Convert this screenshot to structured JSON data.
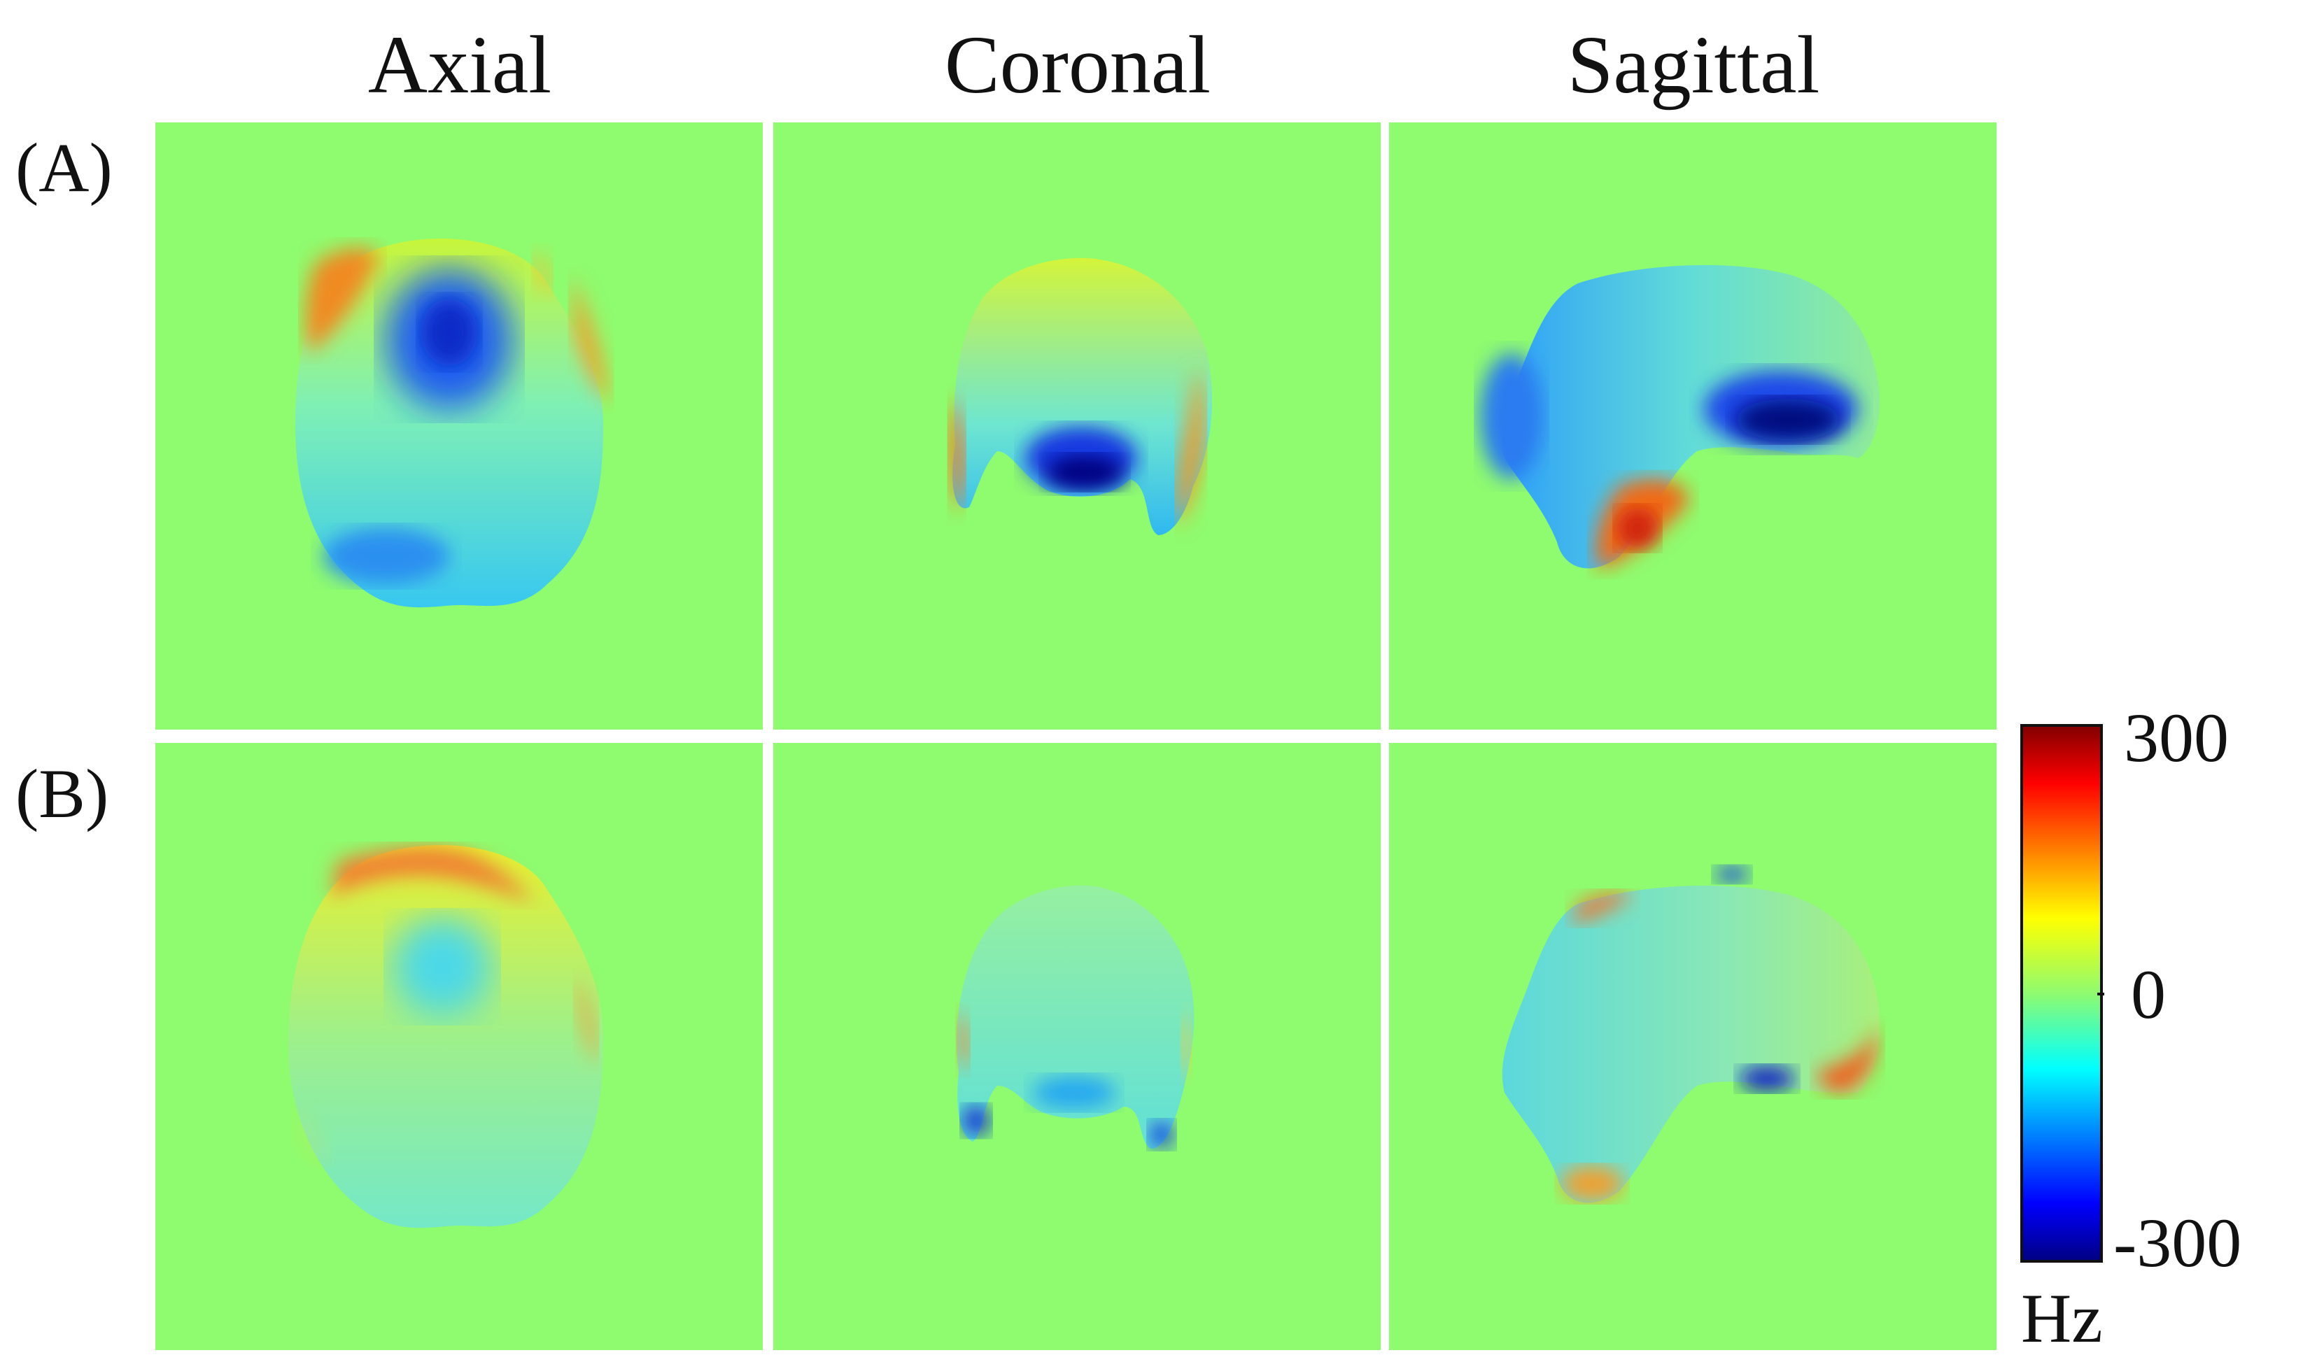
{
  "columns": [
    "Axial",
    "Coronal",
    "Sagittal"
  ],
  "rows": [
    "(A)",
    "(B)"
  ],
  "colorbar": {
    "max_label": "300",
    "mid_label": "0",
    "min_label": "-300",
    "unit": "Hz",
    "min": -300,
    "max": 300,
    "colormap": "jet",
    "stops": [
      "#00007f",
      "#0000ff",
      "#00ffff",
      "#8ffb6f",
      "#ffff00",
      "#ff0000",
      "#7f0000"
    ]
  },
  "background_color": "#8ffb6f"
}
